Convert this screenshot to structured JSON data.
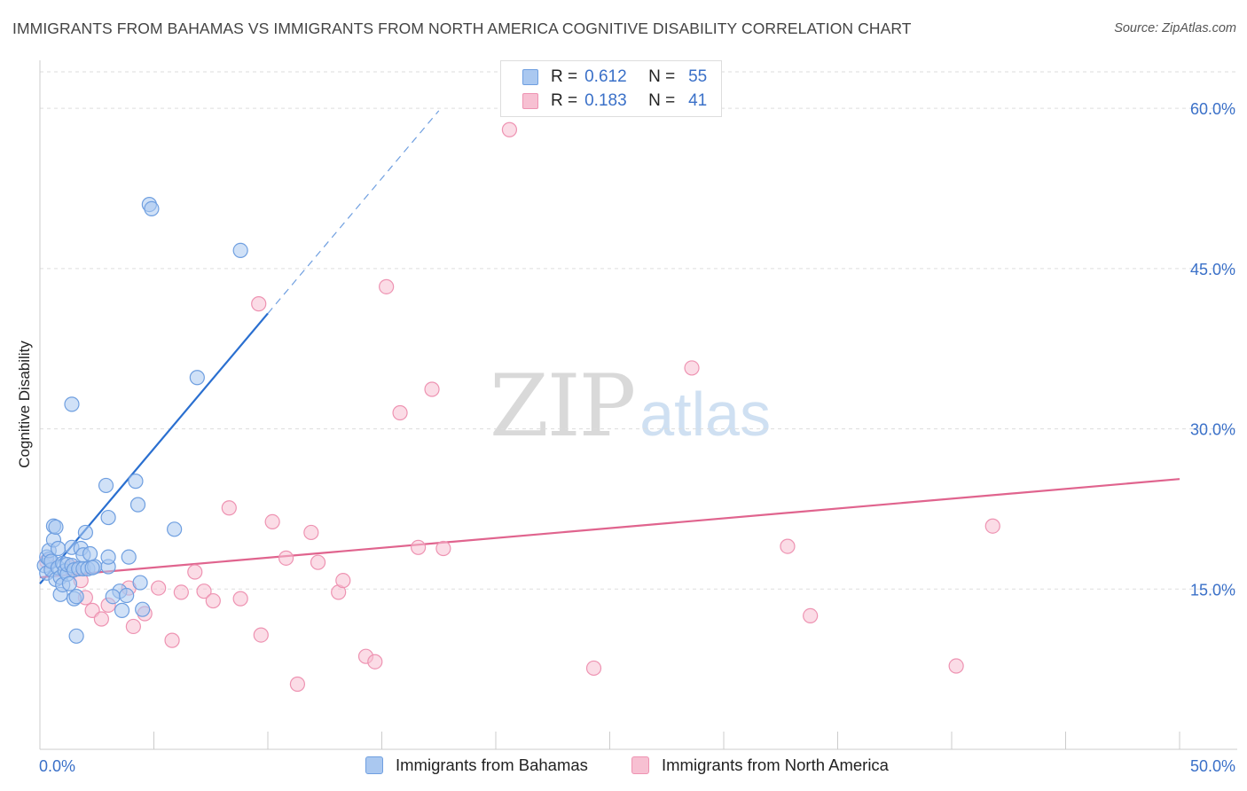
{
  "header": {
    "title": "IMMIGRANTS FROM BAHAMAS VS IMMIGRANTS FROM NORTH AMERICA COGNITIVE DISABILITY CORRELATION CHART",
    "source": "Source: ZipAtlas.com"
  },
  "watermark": {
    "zip": "ZIP",
    "atlas": "atlas"
  },
  "colors": {
    "blue_fill": "#aac8f0",
    "blue_stroke": "#6f9fe0",
    "blue_line": "#2a6fd0",
    "pink_fill": "#f7c0d2",
    "pink_stroke": "#ee93b2",
    "pink_line": "#e0648e",
    "axis_tick_label": "#3a70c8"
  },
  "legend_top": {
    "rows": [
      {
        "r_label": "R =",
        "r_value": "0.612",
        "n_label": "N =",
        "n_value": "55"
      },
      {
        "r_label": "R =",
        "r_value": "0.183",
        "n_label": "N =",
        "n_value": "41"
      }
    ]
  },
  "legend_bottom": {
    "items": [
      "Immigrants from Bahamas",
      "Immigrants from North America"
    ]
  },
  "chart_data": {
    "type": "scatter",
    "title": "IMMIGRANTS FROM BAHAMAS VS IMMIGRANTS FROM NORTH AMERICA COGNITIVE DISABILITY CORRELATION CHART",
    "xlabel": "",
    "ylabel": "Cognitive Disability",
    "xlim": [
      0,
      50
    ],
    "ylim": [
      0,
      63.5
    ],
    "x_tick_labels": {
      "min": "0.0%",
      "max": "50.0%"
    },
    "y_ticks": [
      15,
      30,
      45,
      60
    ],
    "y_tick_labels": [
      "15.0%",
      "30.0%",
      "45.0%",
      "60.0%"
    ],
    "grid": true,
    "series": [
      {
        "name": "Immigrants from Bahamas",
        "r": 0.612,
        "n": 55,
        "trend": {
          "x0": 0.0,
          "y0": 15.5,
          "x1": 10.0,
          "y1": 40.8,
          "dashed_to_x": 17.5
        },
        "points": [
          [
            0.2,
            17.2
          ],
          [
            0.3,
            16.5
          ],
          [
            0.3,
            18.0
          ],
          [
            0.4,
            17.8
          ],
          [
            0.4,
            18.6
          ],
          [
            0.5,
            16.8
          ],
          [
            0.5,
            17.6
          ],
          [
            0.6,
            19.6
          ],
          [
            0.6,
            20.9
          ],
          [
            0.7,
            15.9
          ],
          [
            0.7,
            20.8
          ],
          [
            0.8,
            17.0
          ],
          [
            0.8,
            18.8
          ],
          [
            0.9,
            14.5
          ],
          [
            0.9,
            16.1
          ],
          [
            1.0,
            15.4
          ],
          [
            1.0,
            17.4
          ],
          [
            1.1,
            16.7
          ],
          [
            1.2,
            16.4
          ],
          [
            1.2,
            17.3
          ],
          [
            1.3,
            15.5
          ],
          [
            1.4,
            18.9
          ],
          [
            1.4,
            17.2
          ],
          [
            1.5,
            14.1
          ],
          [
            1.5,
            16.8
          ],
          [
            1.6,
            14.3
          ],
          [
            1.6,
            10.6
          ],
          [
            1.7,
            16.9
          ],
          [
            1.8,
            18.8
          ],
          [
            1.9,
            18.2
          ],
          [
            1.4,
            32.3
          ],
          [
            1.9,
            16.9
          ],
          [
            2.0,
            20.3
          ],
          [
            2.1,
            16.9
          ],
          [
            2.4,
            17.1
          ],
          [
            2.3,
            17.0
          ],
          [
            2.2,
            18.3
          ],
          [
            2.9,
            24.7
          ],
          [
            3.0,
            17.1
          ],
          [
            3.5,
            14.8
          ],
          [
            3.0,
            18.0
          ],
          [
            3.0,
            21.7
          ],
          [
            3.2,
            14.3
          ],
          [
            3.8,
            14.4
          ],
          [
            3.9,
            18.0
          ],
          [
            4.2,
            25.1
          ],
          [
            4.4,
            15.6
          ],
          [
            4.5,
            13.1
          ],
          [
            4.3,
            22.9
          ],
          [
            4.8,
            51.0
          ],
          [
            4.9,
            50.6
          ],
          [
            5.9,
            20.6
          ],
          [
            6.9,
            34.8
          ],
          [
            8.8,
            46.7
          ],
          [
            3.6,
            13.0
          ]
        ]
      },
      {
        "name": "Immigrants from North America",
        "r": 0.183,
        "n": 41,
        "trend": {
          "x0": 0.0,
          "y0": 16.1,
          "x1": 50.0,
          "y1": 25.3
        },
        "points": [
          [
            1.4,
            17.0
          ],
          [
            1.8,
            15.8
          ],
          [
            2.0,
            14.2
          ],
          [
            2.3,
            13.0
          ],
          [
            2.7,
            12.2
          ],
          [
            3.0,
            13.5
          ],
          [
            3.9,
            15.1
          ],
          [
            4.1,
            11.5
          ],
          [
            4.6,
            12.7
          ],
          [
            5.2,
            15.1
          ],
          [
            5.8,
            10.2
          ],
          [
            6.2,
            14.7
          ],
          [
            6.8,
            16.6
          ],
          [
            7.2,
            14.8
          ],
          [
            7.6,
            13.9
          ],
          [
            8.3,
            22.6
          ],
          [
            8.8,
            14.1
          ],
          [
            9.6,
            41.7
          ],
          [
            9.7,
            10.7
          ],
          [
            10.2,
            21.3
          ],
          [
            10.8,
            17.9
          ],
          [
            11.3,
            6.1
          ],
          [
            11.9,
            20.3
          ],
          [
            12.2,
            17.5
          ],
          [
            13.1,
            14.7
          ],
          [
            13.3,
            15.8
          ],
          [
            14.3,
            8.7
          ],
          [
            14.7,
            8.2
          ],
          [
            15.2,
            43.3
          ],
          [
            15.8,
            31.5
          ],
          [
            16.6,
            18.9
          ],
          [
            17.2,
            33.7
          ],
          [
            17.7,
            18.8
          ],
          [
            20.6,
            58.0
          ],
          [
            24.3,
            7.6
          ],
          [
            28.6,
            35.7
          ],
          [
            32.8,
            19.0
          ],
          [
            33.8,
            12.5
          ],
          [
            40.2,
            7.8
          ],
          [
            41.8,
            20.9
          ],
          [
            0.3,
            17.6
          ]
        ]
      }
    ]
  }
}
